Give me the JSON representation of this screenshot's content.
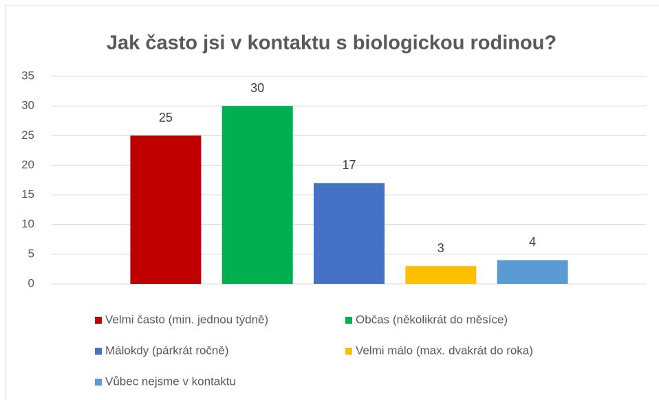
{
  "chart_data": {
    "type": "bar",
    "title": "Jak často jsi v kontaktu s biologickou rodinou?",
    "categories": [
      null
    ],
    "series": [
      {
        "name": "Velmi často (min. jednou týdně)",
        "color": "#c00000",
        "values": [
          25
        ]
      },
      {
        "name": "Občas (několikrát do měsíce)",
        "color": "#00b050",
        "values": [
          30
        ]
      },
      {
        "name": "Málokdy (párkrát ročně)",
        "color": "#4472c4",
        "values": [
          17
        ]
      },
      {
        "name": "Velmi málo (max. dvakrát do roka)",
        "color": "#ffc000",
        "values": [
          3
        ]
      },
      {
        "name": "Vůbec nejsme v kontaktu",
        "color": "#5b9bd5",
        "values": [
          4
        ]
      }
    ],
    "ylim": [
      0,
      35
    ],
    "yticks": [
      0,
      5,
      10,
      15,
      20,
      25,
      30,
      35
    ],
    "grid": true,
    "legend": "bottom"
  }
}
